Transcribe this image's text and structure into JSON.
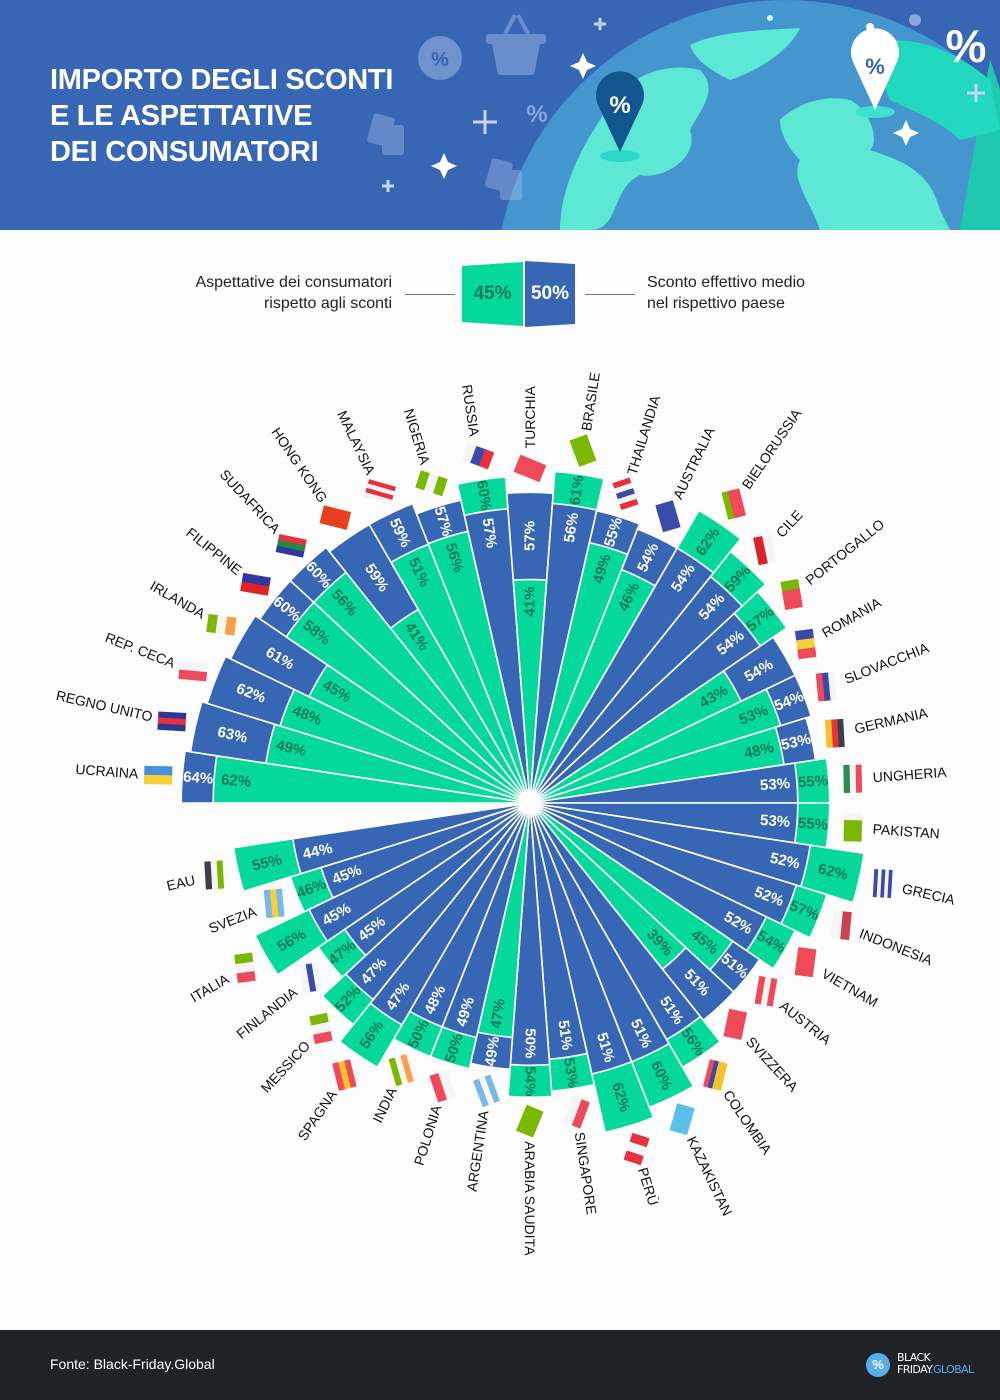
{
  "header": {
    "title_lines": [
      "IMPORTO DEGLI SCONTI",
      "E LE ASPETTATIVE",
      "DEI CONSUMATORI"
    ],
    "pin_symbol": "%",
    "icons": [
      "percent-badge-icon",
      "shopping-basket-icon",
      "price-tag-icon",
      "sparkle-icon",
      "plus-icon",
      "globe-icon",
      "map-pin-icon"
    ]
  },
  "legend": {
    "expectation_label_line1": "Aspettative dei consumatori",
    "expectation_label_line2": "rispetto agli sconti",
    "expectation_sample": "45%",
    "actual_sample": "50%",
    "actual_label_line1": "Sconto effettivo medio",
    "actual_label_line2": "nel rispettivo paese"
  },
  "colors": {
    "header_bg": "#3766b4",
    "actual": "#3766b4",
    "expectation": "#05d89b",
    "expectation_text": "#127a57",
    "footer_bg": "#1f2227"
  },
  "chart_data": {
    "type": "radial-bar",
    "unit": "%",
    "series": [
      {
        "name": "Aspettative dei consumatori rispetto agli sconti",
        "key": "expectation"
      },
      {
        "name": "Sconto effettivo medio nel rispettivo paese",
        "key": "actual"
      }
    ],
    "countries": [
      {
        "name": "UCRAINA",
        "actual": 64,
        "expectation": 62,
        "flag": {
          "c": [
            "#4a90d9",
            "#f7d038"
          ]
        }
      },
      {
        "name": "REGNO UNITO",
        "actual": 63,
        "expectation": 49,
        "flag": {
          "c": [
            "#2b3990",
            "#e8313d",
            "#2b3990"
          ]
        }
      },
      {
        "name": "REP. CECA",
        "actual": 62,
        "expectation": 48,
        "flag": {
          "c": [
            "#f5f5f5",
            "#f04a5a"
          ]
        }
      },
      {
        "name": "IRLANDA",
        "actual": 61,
        "expectation": 45,
        "flag": {
          "c": [
            "#7ab800",
            "#f5f5f5",
            "#ff9f4a"
          ],
          "v": true
        }
      },
      {
        "name": "FILIPPINE",
        "actual": 60,
        "expectation": 58,
        "flag": {
          "c": [
            "#3038a0",
            "#e02424"
          ]
        }
      },
      {
        "name": "SUDAFRICA",
        "actual": 60,
        "expectation": 56,
        "flag": {
          "c": [
            "#e8313d",
            "#1f8a43",
            "#3038a0"
          ]
        }
      },
      {
        "name": "HONG KONG",
        "actual": 59,
        "expectation": 41,
        "flag": {
          "c": [
            "#e8401c"
          ]
        }
      },
      {
        "name": "MALAYSIA",
        "actual": 59,
        "expectation": 51,
        "flag": {
          "c": [
            "#e8313d",
            "#f5f5f5",
            "#e8313d",
            "#f5f5f5"
          ]
        }
      },
      {
        "name": "NIGERIA",
        "actual": 57,
        "expectation": 56,
        "flag": {
          "c": [
            "#7ab800",
            "#f5f5f5",
            "#7ab800"
          ],
          "v": true
        }
      },
      {
        "name": "RUSSIA",
        "actual": 57,
        "expectation": 60,
        "flag": {
          "c": [
            "#f5f5f5",
            "#3a4aa8",
            "#e8313d"
          ],
          "v": true
        }
      },
      {
        "name": "TURCHIA",
        "actual": 57,
        "expectation": 41,
        "flag": {
          "c": [
            "#f04a5a"
          ]
        }
      },
      {
        "name": "BRASILE",
        "actual": 56,
        "expectation": 61,
        "flag": {
          "c": [
            "#7ab800"
          ]
        }
      },
      {
        "name": "THAILANDIA",
        "actual": 55,
        "expectation": 49,
        "flag": {
          "c": [
            "#e8313d",
            "#f5f5f5",
            "#3a4aa8",
            "#f5f5f5",
            "#e8313d"
          ],
          "v": true
        }
      },
      {
        "name": "AUSTRALIA",
        "actual": 54,
        "expectation": 46,
        "flag": {
          "c": [
            "#3a4aa8"
          ]
        }
      },
      {
        "name": "BIELORUSSIA",
        "actual": 54,
        "expectation": 62,
        "flag": {
          "c": [
            "#f04a5a",
            "#f04a5a",
            "#7ab800"
          ]
        }
      },
      {
        "name": "CILE",
        "actual": 54,
        "expectation": 59,
        "flag": {
          "c": [
            "#f5f5f5",
            "#d8232a"
          ]
        }
      },
      {
        "name": "PORTOGALLO",
        "actual": 54,
        "expectation": 57,
        "flag": {
          "c": [
            "#7ab800",
            "#f04a5a",
            "#f04a5a"
          ],
          "v": true
        }
      },
      {
        "name": "ROMANIA",
        "actual": 54,
        "expectation": 43,
        "flag": {
          "c": [
            "#3a4aa8",
            "#f7d038",
            "#f04a5a"
          ],
          "v": true
        }
      },
      {
        "name": "SLOVACCHIA",
        "actual": 54,
        "expectation": 53,
        "flag": {
          "c": [
            "#f5f5f5",
            "#3a4aa8",
            "#f04a5a"
          ]
        }
      },
      {
        "name": "GERMANIA",
        "actual": 53,
        "expectation": 48,
        "flag": {
          "c": [
            "#3a3f4a",
            "#e8313d",
            "#f7c12a"
          ]
        }
      },
      {
        "name": "UNGHERIA",
        "actual": 53,
        "expectation": 55,
        "flag": {
          "c": [
            "#f04a5a",
            "#f5f5f5",
            "#2e8b57"
          ]
        }
      },
      {
        "name": "PAKISTAN",
        "actual": 53,
        "expectation": 55,
        "flag": {
          "c": [
            "#f5f5f5",
            "#7ab800",
            "#7ab800",
            "#7ab800"
          ],
          "v": true
        }
      },
      {
        "name": "GRECIA",
        "actual": 52,
        "expectation": 62,
        "flag": {
          "c": [
            "#3a4aa8",
            "#f5f5f5",
            "#3a4aa8",
            "#f5f5f5",
            "#3a4aa8"
          ]
        }
      },
      {
        "name": "INDONESIA",
        "actual": 52,
        "expectation": 57,
        "flag": {
          "c": [
            "#c8434f",
            "#f5f5f5"
          ]
        }
      },
      {
        "name": "VIETNAM",
        "actual": 52,
        "expectation": 54,
        "flag": {
          "c": [
            "#f04a5a"
          ]
        }
      },
      {
        "name": "AUSTRIA",
        "actual": 51,
        "expectation": 45,
        "flag": {
          "c": [
            "#f04a5a",
            "#f5f5f5",
            "#f04a5a"
          ]
        }
      },
      {
        "name": "SVIZZERA",
        "actual": 51,
        "expectation": 39,
        "flag": {
          "c": [
            "#f04a5a"
          ]
        }
      },
      {
        "name": "COLOMBIA",
        "actual": 51,
        "expectation": 56,
        "flag": {
          "c": [
            "#f7c12a",
            "#f7c12a",
            "#3a4aa8",
            "#f04a5a"
          ]
        }
      },
      {
        "name": "KAZAKISTAN",
        "actual": 51,
        "expectation": 60,
        "flag": {
          "c": [
            "#5bc0e8"
          ]
        }
      },
      {
        "name": "PERÙ",
        "actual": 51,
        "expectation": 62,
        "flag": {
          "c": [
            "#e8313d",
            "#f5f5f5",
            "#e8313d"
          ],
          "v": true
        }
      },
      {
        "name": "SINGAPORE",
        "actual": 51,
        "expectation": 53,
        "flag": {
          "c": [
            "#f04a5a",
            "#f5f5f5"
          ]
        }
      },
      {
        "name": "ARABIA SAUDITA",
        "actual": 50,
        "expectation": 54,
        "flag": {
          "c": [
            "#7ab800"
          ]
        }
      },
      {
        "name": "ARGENTINA",
        "actual": 49,
        "expectation": 47,
        "flag": {
          "c": [
            "#7ab8e8",
            "#f5f5f5",
            "#7ab8e8"
          ]
        }
      },
      {
        "name": "POLONIA",
        "actual": 49,
        "expectation": 50,
        "flag": {
          "c": [
            "#f5f5f5",
            "#f04a5a"
          ]
        }
      },
      {
        "name": "INDIA",
        "actual": 48,
        "expectation": 50,
        "flag": {
          "c": [
            "#ff9f4a",
            "#f5f5f5",
            "#7ab800"
          ]
        }
      },
      {
        "name": "SPAGNA",
        "actual": 47,
        "expectation": 56,
        "flag": {
          "c": [
            "#f04a5a",
            "#f7c12a",
            "#f04a5a"
          ]
        }
      },
      {
        "name": "MESSICO",
        "actual": 47,
        "expectation": 52,
        "flag": {
          "c": [
            "#7ab800",
            "#f5f5f5",
            "#f04a5a"
          ],
          "v": true
        }
      },
      {
        "name": "FINLANDIA",
        "actual": 45,
        "expectation": 47,
        "flag": {
          "c": [
            "#f5f5f5",
            "#3a4aa8",
            "#f5f5f5"
          ]
        }
      },
      {
        "name": "ITALIA",
        "actual": 45,
        "expectation": 56,
        "flag": {
          "c": [
            "#7ab800",
            "#f5f5f5",
            "#f04a5a"
          ],
          "v": true
        }
      },
      {
        "name": "SVEZIA",
        "actual": 45,
        "expectation": 46,
        "flag": {
          "c": [
            "#7ab8e8",
            "#f7d038",
            "#7ab8e8"
          ]
        }
      },
      {
        "name": "EAU",
        "actual": 44,
        "expectation": 55,
        "flag": {
          "c": [
            "#7ab800",
            "#f5f5f5",
            "#3a3f4a"
          ]
        }
      }
    ]
  },
  "footer": {
    "source": "Fonte: Black-Friday.Global",
    "logo_line1": "BLACK",
    "logo_line2a": "FRIDAY",
    "logo_line2b": ".GLOBAL",
    "logo_symbol": "%"
  }
}
